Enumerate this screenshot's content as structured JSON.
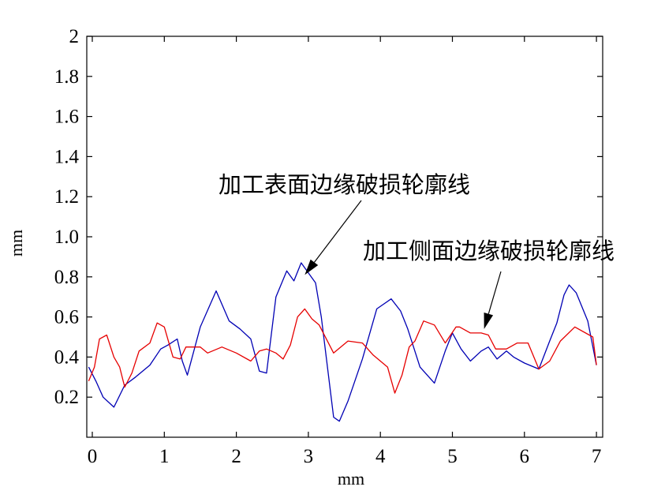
{
  "chart_data": {
    "type": "line",
    "xlabel": "mm",
    "ylabel": "mm",
    "xlim": [
      -0.05,
      7.05
    ],
    "ylim": [
      0,
      2
    ],
    "x_ticks": [
      "0",
      "1",
      "2",
      "3",
      "4",
      "5",
      "6",
      "7"
    ],
    "y_ticks": [
      "0.2",
      "0.4",
      "0.6",
      "0.8",
      "1.0",
      "1.2",
      "1.4",
      "1.6",
      "1.8",
      "2"
    ],
    "grid": false,
    "series": [
      {
        "color": "#0000b4",
        "x": [
          -0.05,
          0.05,
          0.15,
          0.3,
          0.45,
          0.6,
          0.8,
          0.95,
          1.05,
          1.18,
          1.25,
          1.32,
          1.5,
          1.72,
          1.9,
          2.05,
          2.2,
          2.32,
          2.42,
          2.55,
          2.7,
          2.8,
          2.9,
          2.98,
          3.1,
          3.18,
          3.35,
          3.43,
          3.55,
          3.75,
          3.95,
          4.15,
          4.28,
          4.38,
          4.55,
          4.75,
          4.9,
          5.0,
          5.12,
          5.25,
          5.4,
          5.5,
          5.62,
          5.75,
          5.85,
          6.0,
          6.2,
          6.35,
          6.45,
          6.55,
          6.62,
          6.72,
          6.88,
          7.0
        ],
        "y": [
          0.35,
          0.28,
          0.2,
          0.15,
          0.26,
          0.3,
          0.36,
          0.44,
          0.46,
          0.49,
          0.38,
          0.31,
          0.55,
          0.73,
          0.58,
          0.54,
          0.49,
          0.33,
          0.32,
          0.7,
          0.83,
          0.78,
          0.87,
          0.83,
          0.77,
          0.6,
          0.1,
          0.08,
          0.18,
          0.39,
          0.64,
          0.69,
          0.63,
          0.54,
          0.35,
          0.27,
          0.43,
          0.52,
          0.44,
          0.38,
          0.43,
          0.45,
          0.39,
          0.43,
          0.4,
          0.37,
          0.34,
          0.48,
          0.57,
          0.71,
          0.76,
          0.72,
          0.58,
          0.36
        ]
      },
      {
        "color": "#e60000",
        "x": [
          -0.05,
          0.03,
          0.1,
          0.2,
          0.3,
          0.38,
          0.45,
          0.55,
          0.65,
          0.8,
          0.9,
          1.0,
          1.12,
          1.22,
          1.3,
          1.5,
          1.6,
          1.8,
          2.0,
          2.2,
          2.32,
          2.42,
          2.55,
          2.65,
          2.75,
          2.85,
          2.95,
          3.05,
          3.15,
          3.35,
          3.55,
          3.75,
          3.9,
          4.1,
          4.2,
          4.3,
          4.4,
          4.48,
          4.6,
          4.75,
          4.9,
          5.05,
          5.1,
          5.25,
          5.4,
          5.5,
          5.6,
          5.75,
          5.9,
          6.05,
          6.2,
          6.35,
          6.5,
          6.7,
          6.95,
          7.0
        ],
        "y": [
          0.28,
          0.35,
          0.49,
          0.51,
          0.4,
          0.35,
          0.25,
          0.32,
          0.43,
          0.47,
          0.57,
          0.55,
          0.4,
          0.39,
          0.45,
          0.45,
          0.42,
          0.45,
          0.42,
          0.38,
          0.43,
          0.44,
          0.42,
          0.39,
          0.46,
          0.6,
          0.64,
          0.59,
          0.56,
          0.42,
          0.48,
          0.47,
          0.41,
          0.35,
          0.22,
          0.31,
          0.45,
          0.48,
          0.58,
          0.56,
          0.47,
          0.55,
          0.55,
          0.52,
          0.52,
          0.51,
          0.44,
          0.44,
          0.47,
          0.47,
          0.34,
          0.38,
          0.48,
          0.55,
          0.5,
          0.36
        ]
      }
    ],
    "annotations": [
      {
        "text": "加工表面边缘破损轮廓线",
        "arrow_to": [
          2.95,
          0.81
        ]
      },
      {
        "text": "加工侧面边缘破损轮廓线",
        "arrow_to": [
          5.44,
          0.54
        ]
      }
    ]
  }
}
